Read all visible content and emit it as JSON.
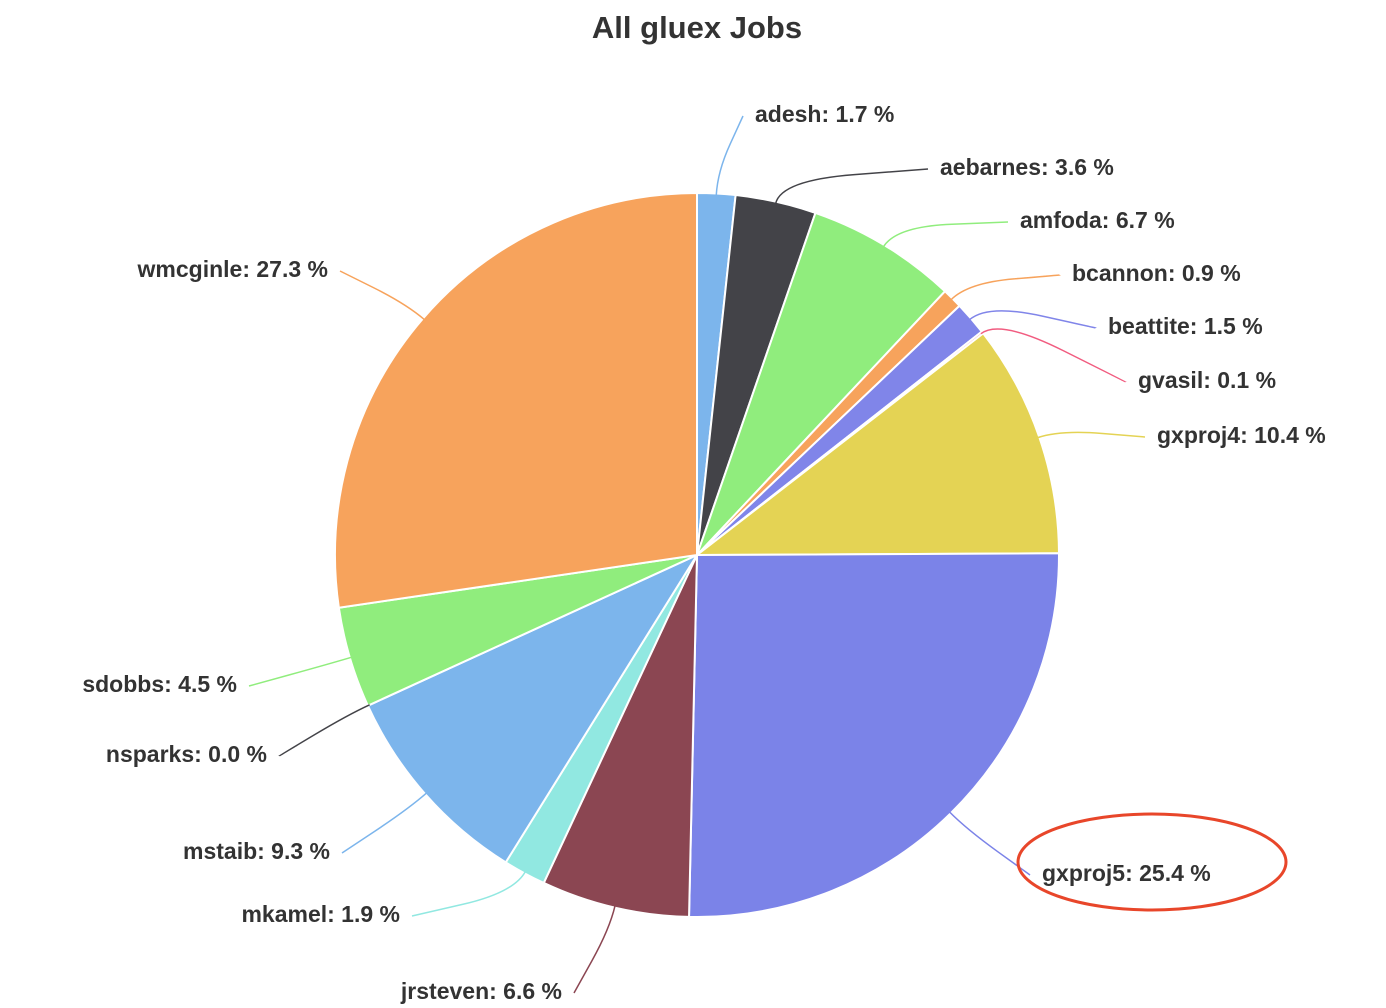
{
  "chart_data": {
    "type": "pie",
    "title": "All gluex Jobs",
    "values": [
      1.7,
      3.6,
      6.7,
      0.9,
      1.5,
      0.1,
      10.4,
      25.4,
      6.6,
      1.9,
      9.3,
      0.0,
      4.5,
      27.3
    ],
    "value_labels": [
      "adesh: 1.7 %",
      "aebarnes: 3.6 %",
      "amfoda: 6.7 %",
      "bcannon: 0.9 %",
      "beattite: 1.5 %",
      "gvasil: 0.1 %",
      "gxproj4: 10.4 %",
      "gxproj5: 25.4 %",
      "jrsteven: 6.6 %",
      "mkamel: 1.9 %",
      "mstaib: 9.3 %",
      "nsparks: 0.0 %",
      "sdobbs: 4.5 %",
      "wmcginle: 27.3 %"
    ],
    "colors": [
      "#7cb5ec",
      "#434348",
      "#90ed7d",
      "#f7a35c",
      "#8085e9",
      "#f15c80",
      "#e4d354",
      "#7b83e8",
      "#8b4652",
      "#91e8e1",
      "#7cb5ec",
      "#434348",
      "#90ed7d",
      "#f7a35c"
    ]
  }
}
